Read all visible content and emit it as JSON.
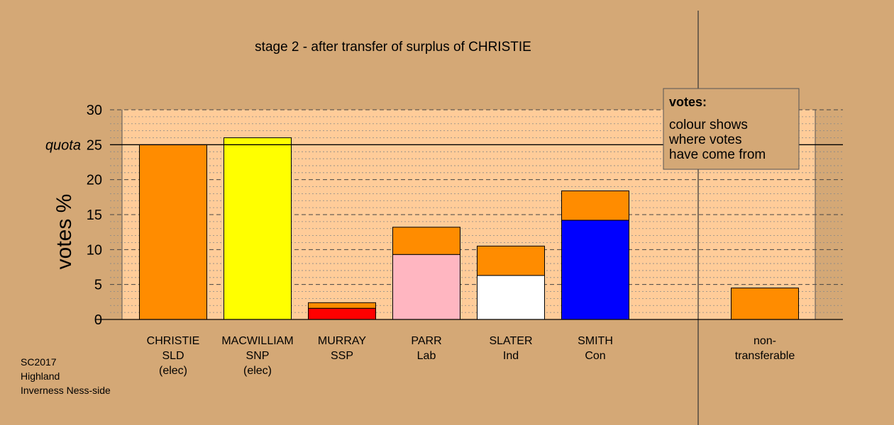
{
  "chart_data": {
    "type": "bar",
    "title": "stage 2 - after transfer of surplus of CHRISTIE",
    "ylabel": "votes %",
    "ylim": [
      0,
      30
    ],
    "yticks": [
      0,
      5,
      10,
      15,
      20,
      25,
      30
    ],
    "quota": {
      "value": 25,
      "label": "quota"
    },
    "categories": [
      {
        "lines": [
          "CHRISTIE",
          "SLD",
          "(elec)"
        ]
      },
      {
        "lines": [
          "MACWILLIAM",
          "SNP",
          "(elec)"
        ]
      },
      {
        "lines": [
          "MURRAY",
          "SSP"
        ]
      },
      {
        "lines": [
          "PARR",
          "Lab"
        ]
      },
      {
        "lines": [
          "SLATER",
          "Ind"
        ]
      },
      {
        "lines": [
          "SMITH",
          "Con"
        ]
      },
      {
        "lines": [
          "non-",
          "transferable"
        ]
      }
    ],
    "bars": [
      {
        "segments": [
          {
            "value": 25.0,
            "color": "#FF8C00"
          }
        ]
      },
      {
        "segments": [
          {
            "value": 26.0,
            "color": "#FFFF00"
          }
        ]
      },
      {
        "segments": [
          {
            "value": 1.6,
            "color": "#FF0000"
          },
          {
            "value": 0.8,
            "color": "#FF8C00"
          }
        ]
      },
      {
        "segments": [
          {
            "value": 9.3,
            "color": "#FFB6C1"
          },
          {
            "value": 3.9,
            "color": "#FF8C00"
          }
        ]
      },
      {
        "segments": [
          {
            "value": 6.3,
            "color": "#FFFFFF"
          },
          {
            "value": 4.2,
            "color": "#FF8C00"
          }
        ]
      },
      {
        "segments": [
          {
            "value": 14.2,
            "color": "#0000FF"
          },
          {
            "value": 4.2,
            "color": "#FF8C00"
          }
        ]
      },
      {
        "segments": [
          {
            "value": 4.5,
            "color": "#FF8C00"
          }
        ]
      }
    ],
    "legend": {
      "title": "votes:",
      "lines": [
        "colour shows",
        "where votes",
        "have come from"
      ],
      "placement": "top-right"
    },
    "grid": true
  },
  "footer": {
    "lines": [
      "SC2017",
      "Highland",
      "Inverness Ness-side"
    ]
  },
  "colors": {
    "background": "#D4A876",
    "plot_area": "#FFCC99"
  }
}
